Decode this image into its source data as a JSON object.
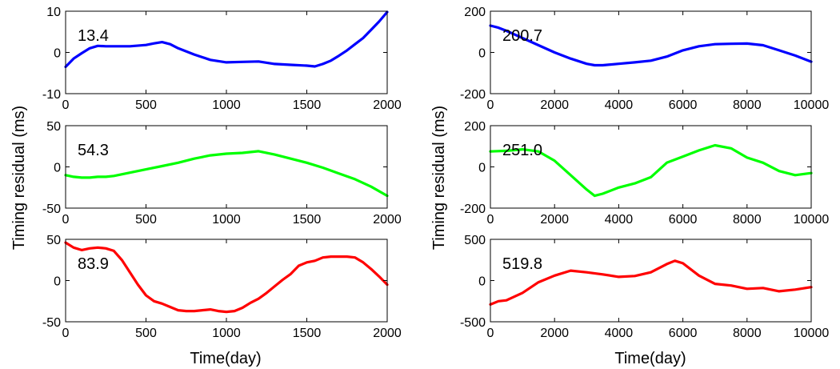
{
  "figure": {
    "left_ylabel": "Timing residual (ms)",
    "right_ylabel": "Timing residual (ms)",
    "left_xlabel": "Time(day)",
    "right_xlabel": "Time(day)"
  },
  "chart_data": [
    {
      "type": "line",
      "annotation": "13.4",
      "color": "#0000ff",
      "xlim": [
        0,
        2000
      ],
      "ylim": [
        -10,
        10
      ],
      "xticks": [
        0,
        500,
        1000,
        1500,
        2000
      ],
      "yticks": [
        -10,
        0,
        10
      ],
      "series": [
        {
          "x": [
            0,
            50,
            100,
            150,
            200,
            250,
            300,
            400,
            500,
            550,
            600,
            650,
            700,
            800,
            900,
            1000,
            1100,
            1200,
            1300,
            1400,
            1500,
            1550,
            1600,
            1650,
            1700,
            1750,
            1800,
            1850,
            1900,
            1950,
            2000
          ],
          "y": [
            -3.5,
            -1.5,
            -0.2,
            1.0,
            1.6,
            1.5,
            1.5,
            1.5,
            1.8,
            2.2,
            2.5,
            2.0,
            1.0,
            -0.5,
            -1.8,
            -2.4,
            -2.3,
            -2.2,
            -2.8,
            -3.0,
            -3.2,
            -3.4,
            -2.8,
            -2.0,
            -0.8,
            0.5,
            2.0,
            3.5,
            5.5,
            7.5,
            9.8
          ]
        }
      ]
    },
    {
      "type": "line",
      "annotation": "54.3",
      "color": "#00ff00",
      "xlim": [
        0,
        2000
      ],
      "ylim": [
        -50,
        50
      ],
      "xticks": [
        0,
        500,
        1000,
        1500,
        2000
      ],
      "yticks": [
        -50,
        0,
        50
      ],
      "series": [
        {
          "x": [
            0,
            50,
            100,
            150,
            200,
            250,
            300,
            400,
            500,
            600,
            700,
            800,
            900,
            1000,
            1100,
            1200,
            1300,
            1400,
            1500,
            1600,
            1700,
            1800,
            1900,
            2000
          ],
          "y": [
            -10,
            -12,
            -13,
            -13,
            -12,
            -12,
            -11,
            -7,
            -3,
            1,
            5,
            10,
            14,
            16,
            17,
            19,
            15,
            10,
            5,
            -1,
            -8,
            -15,
            -24,
            -35
          ]
        }
      ]
    },
    {
      "type": "line",
      "annotation": "83.9",
      "color": "#ff0000",
      "xlim": [
        0,
        2000
      ],
      "ylim": [
        -50,
        50
      ],
      "xticks": [
        0,
        500,
        1000,
        1500,
        2000
      ],
      "yticks": [
        -50,
        0,
        50
      ],
      "series": [
        {
          "x": [
            0,
            50,
            100,
            150,
            200,
            250,
            300,
            350,
            400,
            450,
            500,
            550,
            600,
            650,
            700,
            750,
            800,
            850,
            900,
            950,
            1000,
            1050,
            1100,
            1150,
            1200,
            1250,
            1300,
            1350,
            1400,
            1450,
            1500,
            1550,
            1600,
            1650,
            1700,
            1750,
            1800,
            1850,
            1900,
            1950,
            2000
          ],
          "y": [
            46,
            40,
            37,
            39,
            40,
            39,
            36,
            25,
            10,
            -5,
            -18,
            -25,
            -28,
            -32,
            -36,
            -37,
            -37,
            -36,
            -35,
            -37,
            -38,
            -37,
            -33,
            -27,
            -22,
            -15,
            -7,
            1,
            8,
            18,
            22,
            24,
            28,
            29,
            29,
            29,
            28,
            22,
            14,
            5,
            -5
          ]
        }
      ]
    },
    {
      "type": "line",
      "annotation": "200.7",
      "color": "#0000ff",
      "xlim": [
        0,
        10000
      ],
      "ylim": [
        -200,
        200
      ],
      "xticks": [
        0,
        2000,
        4000,
        6000,
        8000,
        10000
      ],
      "yticks": [
        -200,
        0,
        200
      ],
      "series": [
        {
          "x": [
            0,
            250,
            500,
            1000,
            1500,
            2000,
            2500,
            3000,
            3250,
            3500,
            4000,
            4500,
            5000,
            5500,
            6000,
            6500,
            7000,
            7500,
            8000,
            8500,
            9000,
            9500,
            10000
          ],
          "y": [
            130,
            120,
            105,
            70,
            35,
            0,
            -30,
            -55,
            -62,
            -62,
            -55,
            -48,
            -40,
            -20,
            10,
            30,
            40,
            42,
            43,
            35,
            10,
            -15,
            -45
          ]
        }
      ]
    },
    {
      "type": "line",
      "annotation": "251.0",
      "color": "#00ff00",
      "xlim": [
        0,
        10000
      ],
      "ylim": [
        -200,
        200
      ],
      "xticks": [
        0,
        2000,
        4000,
        6000,
        8000,
        10000
      ],
      "yticks": [
        -200,
        0,
        200
      ],
      "series": [
        {
          "x": [
            0,
            500,
            1000,
            1500,
            2000,
            2500,
            3000,
            3250,
            3500,
            4000,
            4500,
            5000,
            5500,
            6000,
            6500,
            7000,
            7500,
            8000,
            8500,
            9000,
            9500,
            10000
          ],
          "y": [
            75,
            78,
            85,
            75,
            30,
            -40,
            -110,
            -140,
            -130,
            -100,
            -80,
            -50,
            20,
            50,
            80,
            105,
            90,
            45,
            20,
            -20,
            -40,
            -30
          ]
        }
      ]
    },
    {
      "type": "line",
      "annotation": "519.8",
      "color": "#ff0000",
      "xlim": [
        0,
        10000
      ],
      "ylim": [
        -500,
        500
      ],
      "xticks": [
        0,
        2000,
        4000,
        6000,
        8000,
        10000
      ],
      "yticks": [
        -500,
        0,
        500
      ],
      "series": [
        {
          "x": [
            0,
            250,
            500,
            1000,
            1500,
            2000,
            2500,
            3000,
            3500,
            4000,
            4500,
            5000,
            5500,
            5750,
            6000,
            6500,
            7000,
            7500,
            8000,
            8500,
            9000,
            9500,
            10000
          ],
          "y": [
            -290,
            -250,
            -240,
            -150,
            -20,
            60,
            120,
            100,
            75,
            45,
            55,
            100,
            200,
            240,
            210,
            60,
            -40,
            -60,
            -100,
            -90,
            -130,
            -110,
            -80
          ]
        }
      ]
    }
  ]
}
